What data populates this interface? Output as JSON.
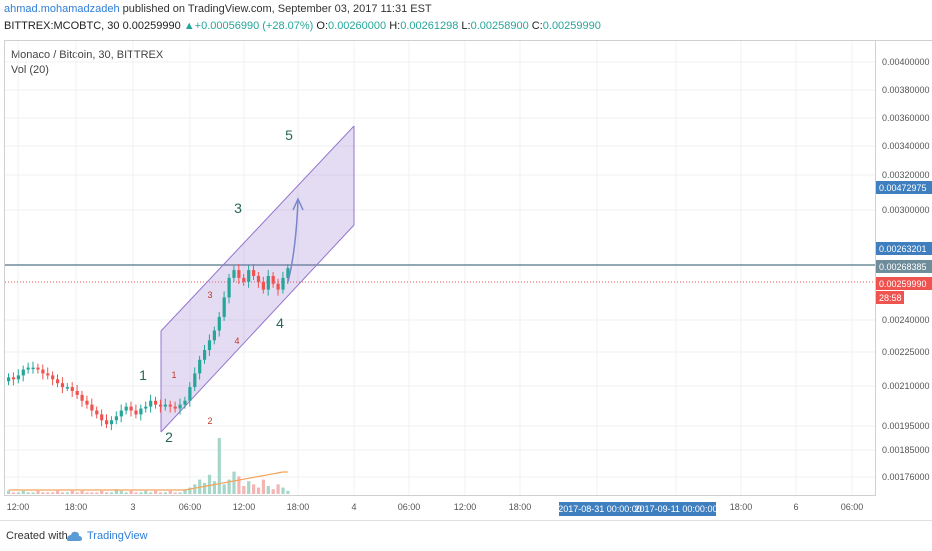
{
  "header": {
    "author": "ahmad.mohamadzadeh",
    "published": "published on TradingView.com, September 03, 2017 11:31 EST",
    "symbol": "BITTREX:MCOBTC, 30",
    "price": "0.00259990",
    "change": "+0.00056990 (+28.07%)",
    "o_label": "O:",
    "o_val": "0.00260000",
    "h_label": "H:",
    "h_val": "0.00261298",
    "l_label": "L:",
    "l_val": "0.00258900",
    "c_label": "C:",
    "c_val": "0.00259990"
  },
  "legend": {
    "title": "Monaco / Bitcoin, 30, BITTREX",
    "volume": "Vol (20)"
  },
  "footer": {
    "created": "Created with",
    "brand": "TradingView"
  },
  "chart_data": {
    "type": "candlestick",
    "y_ticks": [
      "0.00400000",
      "0.00380000",
      "0.00360000",
      "0.00340000",
      "0.00320000",
      "0.00300000",
      "0.00240000",
      "0.00225000",
      "0.00210000",
      "0.00195000",
      "0.00185000",
      "0.00176000"
    ],
    "x_ticks": [
      "12:00",
      "18:00",
      "3",
      "06:00",
      "12:00",
      "18:00",
      "4",
      "06:00",
      "12:00",
      "18:00",
      "2017-08-31 00:00:00",
      "2017-09-11 00:00:00",
      "18:00",
      "6",
      "06:00"
    ],
    "price_labels": [
      {
        "text": "0.00472975",
        "bg": "#3f7fbf"
      },
      {
        "text": "0.00263201",
        "bg": "#3f7fbf"
      },
      {
        "text": "0.00268385",
        "bg": "#6e8c9a"
      },
      {
        "text": "0.00259990",
        "bg": "#ef5350"
      },
      {
        "text": "28:58",
        "bg": "#ef5350"
      }
    ],
    "wave_labels": [
      "1",
      "2",
      "3",
      "4",
      "5"
    ],
    "sub_wave_labels": [
      "1",
      "2",
      "3",
      "4"
    ],
    "closes": [
      227,
      226,
      228,
      231,
      232,
      232,
      231,
      229,
      228,
      226,
      224,
      222,
      222,
      220,
      218,
      215,
      213,
      210,
      208,
      205,
      203,
      205,
      207,
      210,
      212,
      210,
      208,
      211,
      212,
      215,
      213,
      212,
      213,
      212,
      211,
      213,
      215,
      222,
      229,
      236,
      241,
      246,
      251,
      258,
      268,
      278,
      282,
      278,
      276,
      282,
      279,
      276,
      272,
      279,
      275,
      272,
      278,
      283
    ],
    "opens": [
      225,
      227,
      226,
      228,
      231,
      232,
      232,
      231,
      229,
      228,
      226,
      224,
      222,
      222,
      220,
      218,
      215,
      213,
      210,
      208,
      205,
      203,
      205,
      207,
      210,
      212,
      210,
      208,
      211,
      212,
      215,
      213,
      212,
      213,
      212,
      211,
      213,
      215,
      222,
      229,
      236,
      241,
      246,
      251,
      258,
      268,
      278,
      282,
      278,
      276,
      282,
      279,
      276,
      272,
      279,
      275,
      272,
      278
    ],
    "volumes": [
      2,
      1,
      1,
      2,
      1,
      1,
      2,
      1,
      1,
      1,
      2,
      1,
      1,
      2,
      1,
      2,
      1,
      1,
      1,
      2,
      1,
      1,
      3,
      2,
      1,
      2,
      1,
      1,
      2,
      1,
      2,
      1,
      1,
      2,
      1,
      1,
      3,
      4,
      6,
      9,
      7,
      12,
      8,
      35,
      6,
      9,
      14,
      11,
      5,
      8,
      6,
      4,
      9,
      5,
      3,
      6,
      4,
      2
    ],
    "colors": {
      "up": "#26a69a",
      "down": "#ef5350",
      "channel": "#9575cd",
      "wave": "#26675a",
      "sub": "#c0392b",
      "arrow": "#7986cb"
    }
  }
}
